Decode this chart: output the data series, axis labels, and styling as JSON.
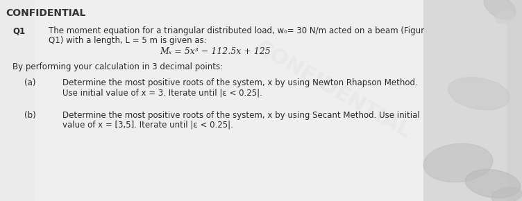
{
  "background_color": "#d0d0d0",
  "paper_color": "#e8e8e8",
  "header_text": "CONFIDENTIAL",
  "q1_label": "Q1",
  "intro_line1": "The moment equation for a triangular distributed load, w₀= 30 N/m acted on a beam (Figur",
  "intro_line2": "Q1) with a length, L = 5 m is given as:",
  "equation": "Mₓ = 5x³ − 112.5x + 125",
  "calc_note": "By performing your calculation in 3 decimal points:",
  "a_label": "(a)",
  "a_line1": "Determine the most positive roots of the system, x by using Newton Rhapson Method.",
  "a_line2": "Use initial value of x = 3. Iterate until |ε < 0.25|.",
  "b_label": "(b)",
  "b_line1": "Determine the most positive roots of the system, x by using Secant Method. Use initial",
  "b_line2": "value of x = [3,5]. Iterate until |ε < 0.25|.",
  "font_size_main": 8.5,
  "font_size_eq": 9.0,
  "font_size_header": 10,
  "text_color": "#2a2a2a",
  "header_color": "#1a1a1a",
  "blob_colors": [
    "#c8c8c8",
    "#b8b8b8",
    "#cccccc",
    "#c0c0c0",
    "#bbbbbb"
  ]
}
